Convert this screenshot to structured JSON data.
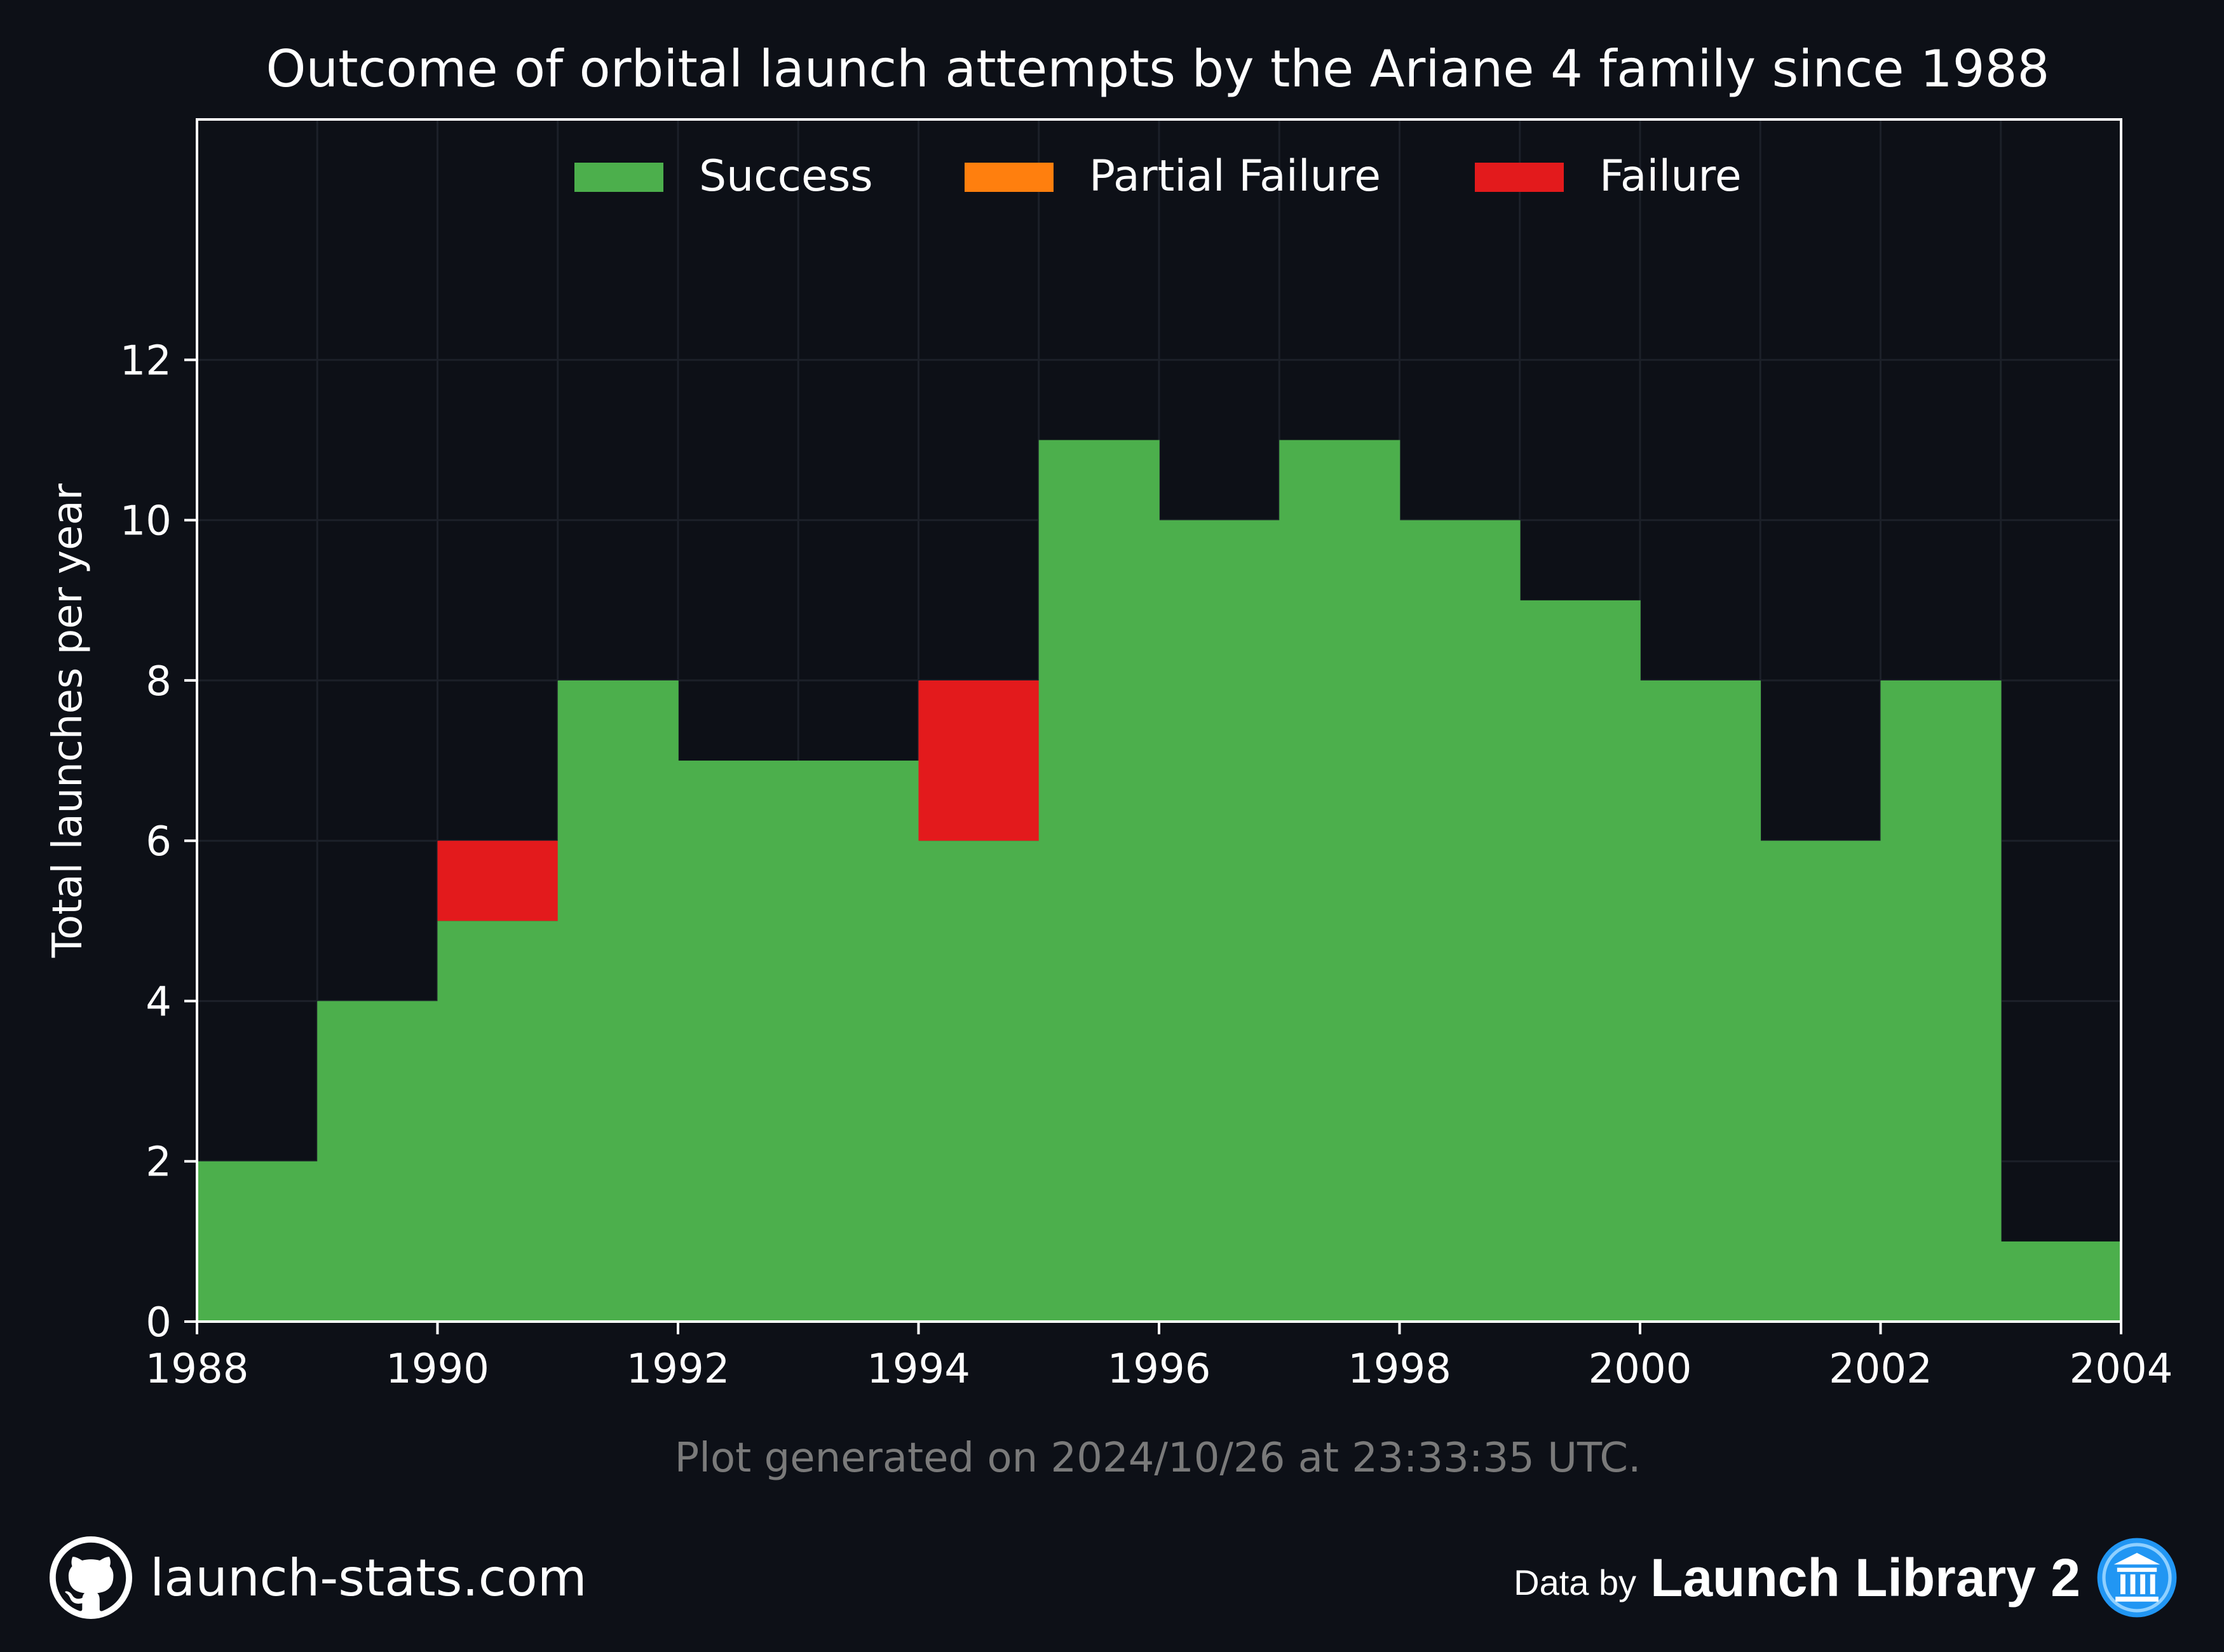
{
  "chart_data": {
    "type": "bar",
    "stacked": true,
    "title": "Outcome of orbital launch attempts by the Ariane 4 family since 1988",
    "ylabel": "Total launches per year",
    "xlabel": "",
    "x": [
      1988,
      1989,
      1990,
      1991,
      1992,
      1993,
      1994,
      1995,
      1996,
      1997,
      1998,
      1999,
      2000,
      2001,
      2002,
      2003
    ],
    "series": [
      {
        "name": "Success",
        "color": "#4caf4c",
        "values": [
          2,
          4,
          5,
          8,
          7,
          7,
          6,
          11,
          10,
          11,
          10,
          9,
          8,
          6,
          8,
          1
        ]
      },
      {
        "name": "Partial Failure",
        "color": "#ff7f0e",
        "values": [
          0,
          0,
          0,
          0,
          0,
          0,
          0,
          0,
          0,
          0,
          0,
          0,
          0,
          0,
          0,
          0
        ]
      },
      {
        "name": "Failure",
        "color": "#e31a1c",
        "values": [
          0,
          0,
          1,
          0,
          0,
          0,
          2,
          0,
          0,
          0,
          0,
          0,
          0,
          0,
          0,
          0
        ]
      }
    ],
    "xlim": [
      1988,
      2004
    ],
    "ylim": [
      0,
      15
    ],
    "xticks": [
      "1988",
      "1990",
      "1992",
      "1994",
      "1996",
      "1998",
      "2000",
      "2002",
      "2004"
    ],
    "yticks": [
      "0",
      "2",
      "4",
      "6",
      "8",
      "10",
      "12"
    ],
    "grid": true,
    "legend_position": "top-center"
  },
  "note": "Plot generated on 2024/10/26 at 23:33:35 UTC.",
  "footer": {
    "site": "launch-stats.com",
    "data_by": "Data by",
    "library": "Launch Library 2",
    "left_icon": "github-icon",
    "right_icon": "launch-library-icon"
  },
  "colors": {
    "background": "#0d1017",
    "grid": "#1c2029",
    "text": "#ffffff",
    "muted": "#7a7a7a",
    "accent_blue": "#2196f3"
  }
}
